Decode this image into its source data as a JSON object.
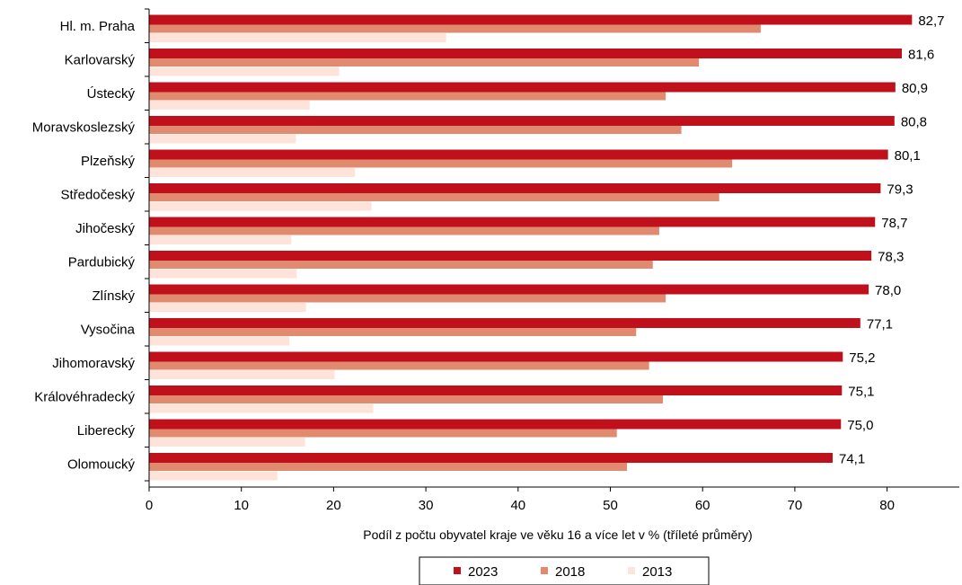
{
  "chart_data": {
    "type": "bar",
    "orientation": "horizontal",
    "categories": [
      "Hl. m. Praha",
      "Karlovarský",
      "Ústecký",
      "Moravskoslezský",
      "Plzeňský",
      "Středočeský",
      "Jihočeský",
      "Pardubický",
      "Zlínský",
      "Vysočina",
      "Jihomoravský",
      "Královéhradecký",
      "Liberecký",
      "Olomoucký"
    ],
    "series": [
      {
        "name": "2023",
        "color": "#c0101c",
        "values": [
          82.7,
          81.6,
          80.9,
          80.8,
          80.1,
          79.3,
          78.7,
          78.3,
          78.0,
          77.1,
          75.2,
          75.1,
          75.0,
          74.1
        ]
      },
      {
        "name": "2018",
        "color": "#e08a6f",
        "values": [
          66.3,
          59.6,
          56.0,
          57.7,
          63.2,
          61.8,
          55.3,
          54.6,
          56.0,
          52.8,
          54.2,
          55.7,
          50.7,
          51.8
        ]
      },
      {
        "name": "2013",
        "color": "#fde3d9",
        "values": [
          32.2,
          20.6,
          17.4,
          15.9,
          22.3,
          24.1,
          15.4,
          16.0,
          17.0,
          15.2,
          20.1,
          24.3,
          16.9,
          13.9
        ]
      }
    ],
    "data_labels": [
      "82,7",
      "81,6",
      "80,9",
      "80,8",
      "80,1",
      "79,3",
      "78,7",
      "78,3",
      "78,0",
      "77,1",
      "75,2",
      "75,1",
      "75,0",
      "74,1"
    ],
    "xticks": [
      "0",
      "10",
      "20",
      "30",
      "40",
      "50",
      "60",
      "70",
      "80"
    ],
    "xlim": [
      0,
      88
    ],
    "xlabel": "Podíl  z  počtu obyvatel kraje ve věku 16 a více let  v % (tříleté  průměry)",
    "ylabel": "",
    "title": "",
    "grid": false,
    "legend": {
      "position": "bottom",
      "items": [
        "2023",
        "2018",
        "2013"
      ]
    }
  }
}
